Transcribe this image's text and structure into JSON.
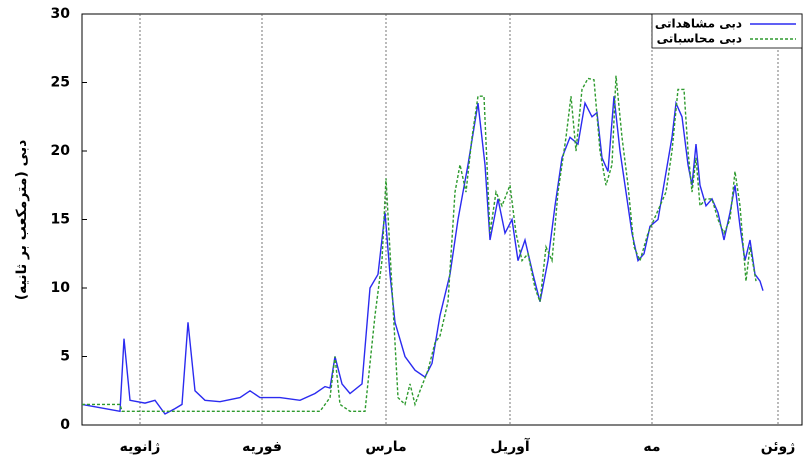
{
  "chart_data": {
    "type": "line",
    "y_label": "دبی (مترمکعب بر ثانیه)",
    "xlim": [
      0,
      180
    ],
    "ylim": [
      0,
      30
    ],
    "yticks": [
      0,
      5,
      10,
      15,
      20,
      25,
      30
    ],
    "xticks": [
      {
        "value": 14.5,
        "label": "ژانویه"
      },
      {
        "value": 45,
        "label": "فوریه"
      },
      {
        "value": 76,
        "label": "مارس"
      },
      {
        "value": 107,
        "label": "آوریل"
      },
      {
        "value": 142.5,
        "label": "مه"
      },
      {
        "value": 174,
        "label": "ژوئن"
      }
    ],
    "grid": true,
    "legend": "upper right",
    "series": [
      {
        "name": "دبی مشاهداتی",
        "color": "#2b2bf0",
        "dash": false,
        "x": [
          0,
          9.5,
          10.5,
          12,
          15.75,
          18.25,
          20.75,
          23.25,
          25,
          26.5,
          28.25,
          30.75,
          34.5,
          39.5,
          42,
          44.5,
          49.5,
          54.5,
          58.25,
          60.75,
          62,
          63.25,
          65,
          67,
          70,
          72,
          74,
          75.75,
          77,
          78.25,
          80.75,
          83.25,
          85.75,
          87.5,
          89.5,
          92,
          94,
          96.5,
          99,
          100.75,
          102,
          104,
          105.75,
          107.5,
          109,
          110.75,
          112.75,
          114.5,
          116.5,
          118.25,
          120,
          122,
          124,
          125.75,
          127.5,
          128.75,
          130,
          131.5,
          133,
          134.5,
          136,
          137.5,
          139,
          140.5,
          142,
          144,
          145.75,
          147.5,
          148.5,
          150,
          151.5,
          152.5,
          153.5,
          154.5,
          156,
          157.5,
          159,
          160.5,
          162,
          163.25,
          164.5,
          165.75,
          167,
          168.25,
          169.5,
          170.25
        ],
        "values": [
          1.5,
          1.0,
          6.3,
          1.8,
          1.6,
          1.8,
          0.8,
          1.2,
          1.5,
          7.5,
          2.5,
          1.8,
          1.7,
          2.0,
          2.5,
          2.0,
          2.0,
          1.8,
          2.3,
          2.8,
          2.7,
          5.0,
          3.0,
          2.3,
          3.0,
          10,
          11,
          15.5,
          11,
          7.5,
          5,
          4.0,
          3.5,
          4.5,
          8,
          11,
          15,
          19,
          23.5,
          19,
          13.5,
          16.5,
          14,
          15,
          12,
          13.5,
          11,
          9,
          12,
          16,
          19.5,
          21,
          20.5,
          23.5,
          22.5,
          22.8,
          19.5,
          18.5,
          24,
          20,
          17,
          14,
          12,
          12.5,
          14.5,
          15,
          18,
          21,
          23.5,
          22.5,
          19,
          17.5,
          20.5,
          17.5,
          16,
          16.5,
          15.5,
          13.5,
          15.5,
          17.5,
          14.5,
          12,
          13.5,
          11,
          10.5,
          9.8
        ]
      },
      {
        "name": "دبی محاسباتی",
        "color": "#2e9a2e",
        "dash": true,
        "x": [
          0,
          9.5,
          10,
          59.5,
          62,
          63.25,
          64.5,
          67,
          70.75,
          73.25,
          75,
          76,
          77.5,
          79,
          80.75,
          82,
          83.25,
          84.5,
          86.5,
          88.25,
          89.5,
          91.5,
          93.25,
          94.5,
          96,
          97.5,
          99,
          100.5,
          102,
          103.5,
          105,
          107,
          108.5,
          110,
          111.5,
          113.25,
          114.5,
          116,
          117.5,
          119,
          121,
          122.25,
          123.5,
          125,
          126.5,
          128,
          129.5,
          131,
          132.5,
          133.5,
          135,
          136.5,
          138,
          139.5,
          141.5,
          143,
          144.5,
          146,
          147.5,
          149,
          150.5,
          151.5,
          152.5,
          153.5,
          154.5,
          156,
          157.5,
          159,
          160.5,
          162,
          163.25,
          164.5,
          166,
          167,
          168.5
        ],
        "values": [
          1.5,
          1.5,
          1.0,
          1.0,
          2,
          5,
          1.5,
          1.0,
          1.0,
          8,
          12,
          18,
          10,
          2,
          1.5,
          3,
          1.5,
          2.5,
          4,
          6,
          6.5,
          9,
          17,
          19,
          17,
          21,
          24,
          24,
          14,
          17,
          16,
          17.5,
          14,
          12,
          12.5,
          10,
          9,
          13,
          12,
          17,
          21,
          24,
          20,
          24.5,
          25.3,
          25.2,
          20,
          17.5,
          19,
          25.5,
          21,
          17.5,
          13,
          12,
          14,
          15,
          16,
          17,
          20,
          24.5,
          24.5,
          20,
          17,
          19.5,
          16,
          16.5,
          16.5,
          15,
          14,
          15,
          18.5,
          16,
          10.5,
          13,
          10.5
        ]
      }
    ]
  }
}
